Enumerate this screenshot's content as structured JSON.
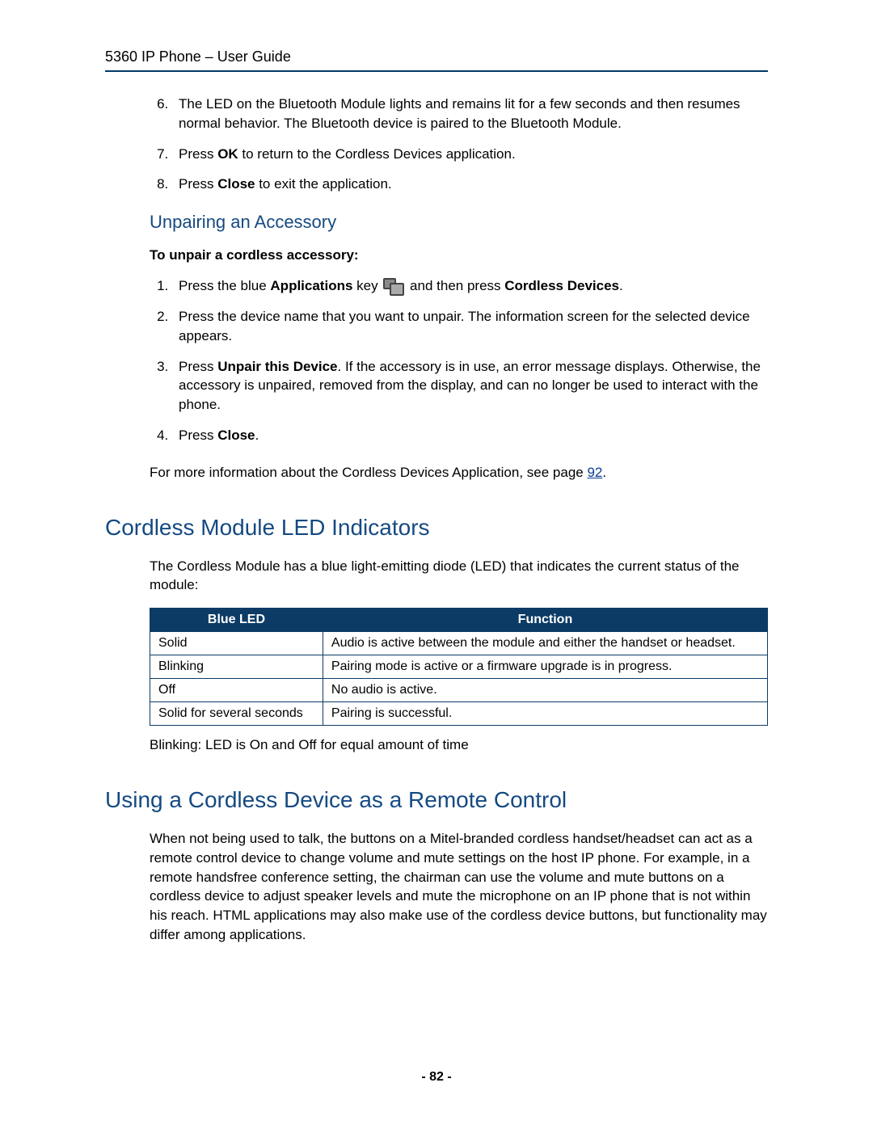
{
  "header": "5360 IP Phone – User Guide",
  "top_list_start": 6,
  "steps_top": [
    "The LED on the Bluetooth Module lights and remains lit for a few seconds and then resumes normal behavior. The Bluetooth device is paired to the Bluetooth Module.",
    {
      "pre": "Press ",
      "b1": "OK",
      "post": " to return to the Cordless Devices application."
    },
    {
      "pre": "Press ",
      "b1": "Close",
      "post": " to exit the application."
    }
  ],
  "unpair_heading": "Unpairing an Accessory",
  "unpair_intro": "To unpair a cordless accessory:",
  "unpair_steps": [
    {
      "pre": "Press the blue ",
      "b1": "Applications",
      "mid": " key ",
      "icon": true,
      "mid2": " and then press ",
      "b2": "Cordless Devices",
      "post": "."
    },
    "Press the device name that you want to unpair. The information screen for the selected device appears.",
    {
      "pre": "Press ",
      "b1": "Unpair this Device",
      "post": ". If the accessory is in use, an error message displays. Otherwise, the accessory is unpaired, removed from the display, and can no longer be used to interact with the phone."
    },
    {
      "pre": "Press ",
      "b1": "Close",
      "post": "."
    }
  ],
  "unpair_footer_pre": "For more information about the Cordless Devices Application, see page ",
  "unpair_footer_link": "92",
  "unpair_footer_post": ".",
  "led_heading": "Cordless Module LED Indicators",
  "led_intro": "The Cordless Module has a blue light-emitting diode (LED) that indicates the current status of the module:",
  "led_table": {
    "columns": [
      "Blue LED",
      "Function"
    ],
    "rows": [
      [
        "Solid",
        "Audio is active between the module and either the handset or headset."
      ],
      [
        "Blinking",
        "Pairing mode is active or a firmware upgrade is in progress."
      ],
      [
        "Off",
        "No audio is active."
      ],
      [
        "Solid for several seconds",
        "Pairing is successful."
      ]
    ],
    "header_bg": "#0c3b66",
    "header_fg": "#ffffff",
    "border_color": "#0c3b66"
  },
  "led_note": "Blinking: LED is On and Off for equal amount of time",
  "remote_heading": "Using a Cordless Device as a Remote Control",
  "remote_body": "When not being used to talk, the buttons on a Mitel-branded cordless handset/headset can act as a remote control device to change volume and mute settings on the host IP phone. For example, in a remote handsfree conference setting, the chairman can use the volume and mute buttons on a cordless device to adjust speaker levels and mute the microphone on an IP phone that is not within his reach. HTML applications may also make use of the cordless device buttons, but functionality may differ among applications.",
  "page_number": "- 82 -",
  "colors": {
    "heading": "#154a82",
    "rule": "#003a66",
    "link": "#0b3d91"
  }
}
